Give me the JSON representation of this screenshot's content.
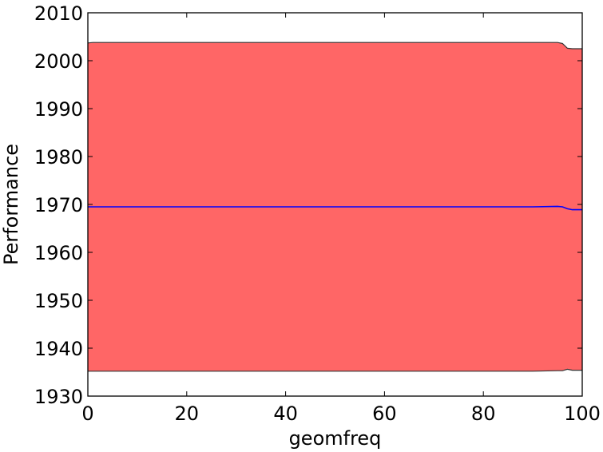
{
  "chart_data": {
    "type": "area",
    "title": "",
    "xlabel": "geomfreq",
    "ylabel": "Performance",
    "xlim": [
      0,
      100
    ],
    "ylim": [
      1930,
      2010
    ],
    "x_ticks": [
      0,
      20,
      40,
      60,
      80,
      100
    ],
    "y_ticks": [
      1930,
      1940,
      1950,
      1960,
      1970,
      1980,
      1990,
      2000,
      2010
    ],
    "x_tick_labels": [
      "0",
      "20",
      "40",
      "60",
      "80",
      "100"
    ],
    "y_tick_labels": [
      "1930",
      "1940",
      "1950",
      "1960",
      "1970",
      "1980",
      "1990",
      "2000",
      "2010"
    ],
    "grid": false,
    "legend": "none",
    "series": [
      {
        "role": "band",
        "color": "#ff6666",
        "x": [
          0,
          1,
          90,
          95,
          96,
          97,
          98,
          100
        ],
        "upper": [
          2003.7,
          2003.8,
          2003.8,
          2003.8,
          2003.6,
          2002.6,
          2002.5,
          2002.5
        ],
        "lower": [
          1935.2,
          1935.2,
          1935.2,
          1935.3,
          1935.3,
          1935.6,
          1935.4,
          1935.4
        ]
      },
      {
        "role": "mean",
        "color": "#0000ff",
        "x": [
          0,
          90,
          95,
          96,
          97,
          98,
          100
        ],
        "values": [
          1969.5,
          1969.5,
          1969.6,
          1969.5,
          1969.1,
          1968.9,
          1968.9
        ]
      }
    ]
  }
}
